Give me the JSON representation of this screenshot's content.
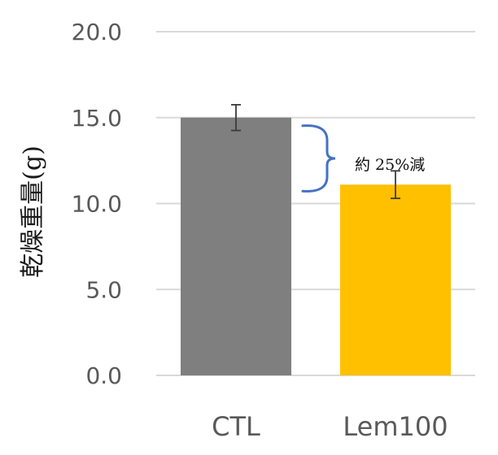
{
  "chart_data": {
    "type": "bar",
    "categories": [
      "CTL",
      "Lem100"
    ],
    "values": [
      15.0,
      11.1
    ],
    "errors": [
      0.75,
      0.8
    ],
    "ylabel": "乾燥重量(g)",
    "ylim": [
      0,
      20
    ],
    "yticks": [
      "0.0",
      "5.0",
      "10.0",
      "15.0",
      "20.0"
    ],
    "grid": true,
    "colors": [
      "#7f7f7f",
      "#ffc000"
    ],
    "bracket_color": "#4472c4",
    "annotation": "約 25%減"
  }
}
